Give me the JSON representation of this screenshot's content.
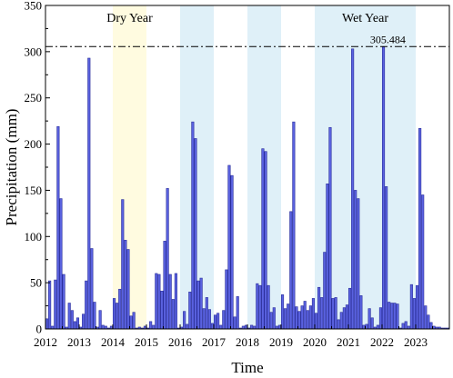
{
  "chart_data": {
    "type": "bar",
    "xlabel": "Time",
    "ylabel": "Precipitation (mm)",
    "ylim": [
      0,
      350
    ],
    "yticks": [
      0,
      50,
      100,
      150,
      200,
      250,
      300,
      350
    ],
    "xlim": [
      2012,
      2024
    ],
    "xticks": [
      "2012",
      "2013",
      "2014",
      "2015",
      "2016",
      "2017",
      "2018",
      "2019",
      "2020",
      "2021",
      "2022",
      "2023"
    ],
    "x_start_year": 2012,
    "bar_color": "#5a62e0",
    "bar_edge_color": "#2b2f9c",
    "reference_line": {
      "value": 305.484,
      "label": "305.484",
      "style": "dash-dot"
    },
    "highlight_regions": [
      {
        "start": 2014.0,
        "end": 2015.0,
        "color": "#fffbe0",
        "label": "Dry Year"
      },
      {
        "start": 2016.0,
        "end": 2017.0,
        "color": "#dff0f8",
        "label": ""
      },
      {
        "start": 2018.0,
        "end": 2019.0,
        "color": "#dff0f8",
        "label": ""
      },
      {
        "start": 2020.0,
        "end": 2022.0,
        "color": "#dff0f8",
        "label": "Wet Year"
      },
      {
        "start": 2022.0,
        "end": 2023.0,
        "color": "#dff0f8",
        "label": ""
      }
    ],
    "monthly_values": [
      11,
      52,
      3,
      53,
      219,
      141,
      59,
      2,
      28,
      20,
      8,
      12,
      2,
      16,
      52,
      293,
      87,
      29,
      2,
      20,
      4,
      3,
      1,
      3,
      33,
      28,
      43,
      140,
      96,
      86,
      14,
      18,
      1,
      2,
      1,
      3,
      1,
      8,
      4,
      60,
      59,
      41,
      95,
      152,
      59,
      32,
      60,
      1,
      2,
      19,
      5,
      40,
      224,
      206,
      52,
      55,
      22,
      34,
      21,
      6,
      15,
      17,
      4,
      20,
      64,
      177,
      166,
      13,
      35,
      1,
      3,
      4,
      1,
      4,
      3,
      49,
      47,
      195,
      192,
      47,
      18,
      23,
      3,
      4,
      37,
      22,
      27,
      127,
      224,
      24,
      19,
      25,
      30,
      20,
      25,
      33,
      17,
      45,
      34,
      83,
      157,
      218,
      33,
      34,
      10,
      18,
      23,
      26,
      44,
      303,
      150,
      141,
      36,
      4,
      5,
      22,
      12,
      2,
      4,
      23,
      305,
      154,
      29,
      28,
      28,
      27,
      1,
      6,
      8,
      3,
      48,
      33,
      47,
      217,
      145,
      25,
      15,
      7,
      3,
      2,
      2,
      1,
      1,
      1
    ],
    "annotations": [
      "Dry Year",
      "Wet Year"
    ]
  }
}
